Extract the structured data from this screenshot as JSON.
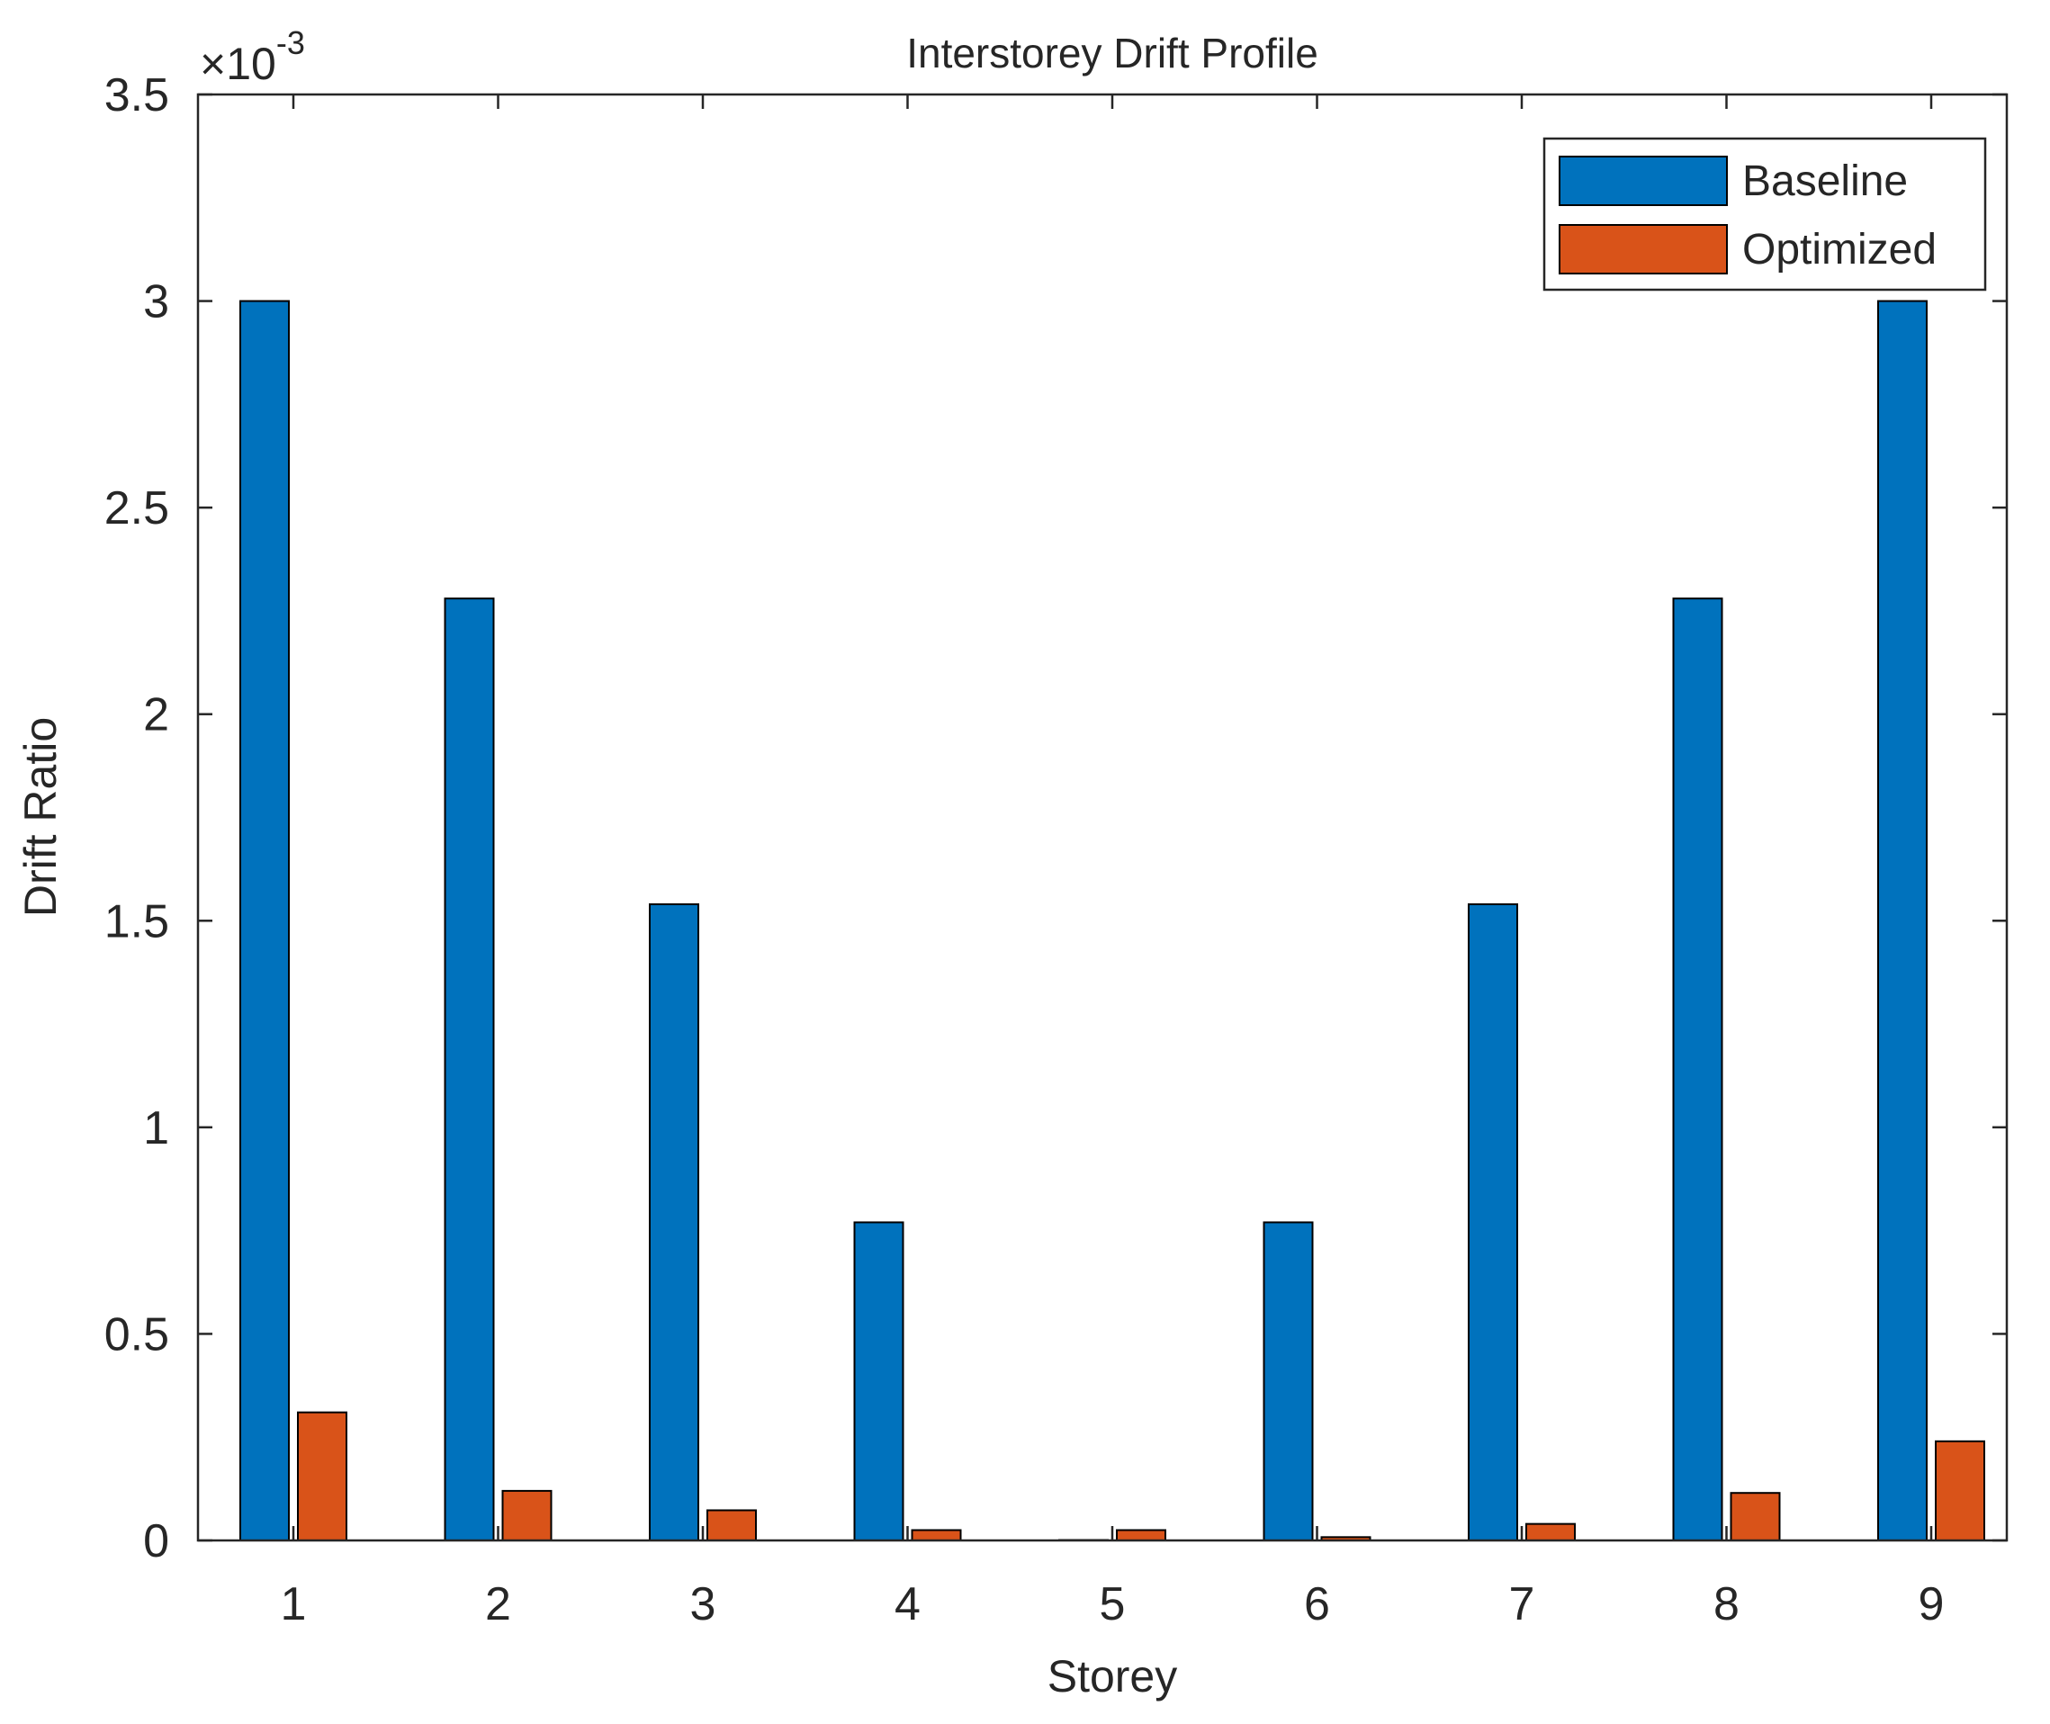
{
  "chart_data": {
    "type": "bar",
    "title": "Interstorey Drift Profile",
    "xlabel": "Storey",
    "ylabel": "Drift Ratio",
    "exponent_label": "×10",
    "exponent_power": "-3",
    "categories": [
      "1",
      "2",
      "3",
      "4",
      "5",
      "6",
      "7",
      "8",
      "9"
    ],
    "series": [
      {
        "name": "Baseline",
        "color": "#0072bd",
        "values": [
          0.003,
          0.00228,
          0.00154,
          0.00077,
          0.0,
          0.00077,
          0.00154,
          0.00228,
          0.003
        ]
      },
      {
        "name": "Optimized",
        "color": "#d95319",
        "values": [
          0.00031,
          0.00012,
          7.3e-05,
          2.5e-05,
          2.5e-05,
          8e-06,
          4e-05,
          0.000115,
          0.00024
        ]
      }
    ],
    "ylim": [
      0,
      0.0035
    ],
    "yticks": [
      0,
      0.0005,
      0.001,
      0.0015,
      0.002,
      0.0025,
      0.003,
      0.0035
    ],
    "ytick_labels": [
      "0",
      "0.5",
      "1",
      "1.5",
      "2",
      "2.5",
      "3",
      "3.5"
    ],
    "grid": false,
    "legend_position": "top-right"
  }
}
